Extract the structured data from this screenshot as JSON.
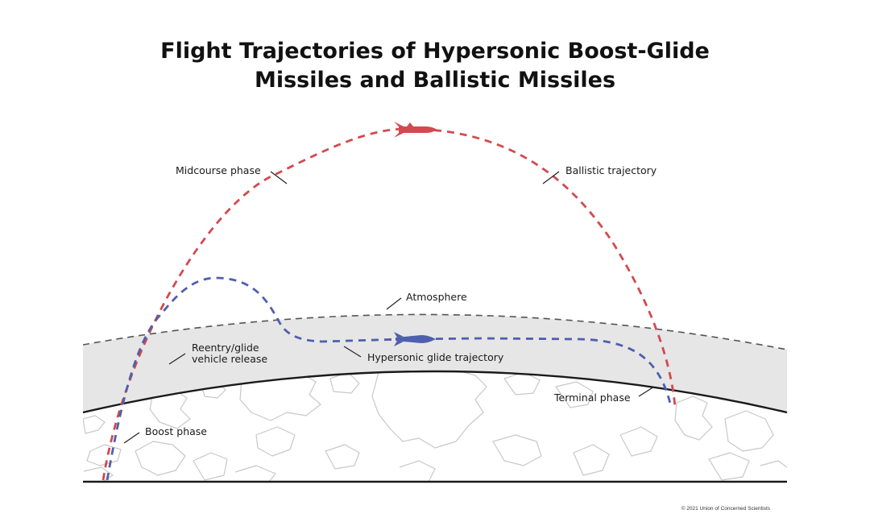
{
  "title": {
    "line1": "Flight Trajectories of Hypersonic Boost-Glide",
    "line2": "Missiles and Ballistic Missiles"
  },
  "labels": {
    "midcourse": "Midcourse phase",
    "ballistic": "Ballistic trajectory",
    "atmosphere": "Atmosphere",
    "reentry_line1": "Reentry/glide",
    "reentry_line2": "vehicle release",
    "glide": "Hypersonic glide trajectory",
    "terminal": "Terminal phase",
    "boost": "Boost phase"
  },
  "credit": "© 2021 Union of Concerned Scientists",
  "colors": {
    "ballistic": "#d24a4f",
    "glide": "#4f5fae",
    "atmosphere_fill": "#e6e6e6",
    "atmosphere_edge": "#555555",
    "earth_edge": "#1a1a1a",
    "coastline": "#c8c8c8"
  },
  "icons": {
    "ballistic_vehicle": "red-missile-icon",
    "glide_vehicle": "blue-glide-vehicle-icon"
  }
}
